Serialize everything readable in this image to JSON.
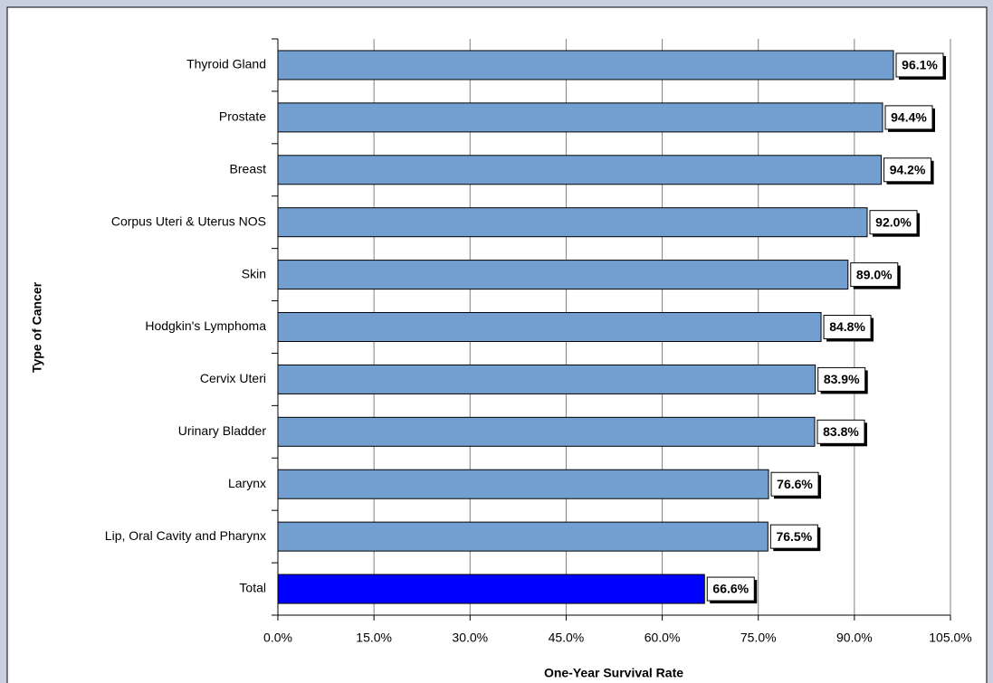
{
  "chart_data": {
    "type": "bar",
    "orientation": "horizontal",
    "x_label": "One-Year Survival Rate",
    "y_label": "Type of Cancer",
    "categories": [
      "Thyroid Gland",
      "Prostate",
      "Breast",
      "Corpus Uteri & Uterus NOS",
      "Skin",
      "Hodgkin's Lymphoma",
      "Cervix Uteri",
      "Urinary Bladder",
      "Larynx",
      "Lip, Oral Cavity and Pharynx",
      "Total"
    ],
    "values": [
      96.1,
      94.4,
      94.2,
      92.0,
      89.0,
      84.8,
      83.9,
      83.8,
      76.6,
      76.5,
      66.6
    ],
    "value_labels": [
      "96.1%",
      "94.4%",
      "94.2%",
      "92.0%",
      "89.0%",
      "84.8%",
      "83.9%",
      "83.8%",
      "76.6%",
      "76.5%",
      "66.6%"
    ],
    "colors": [
      "#739fd0",
      "#739fd0",
      "#739fd0",
      "#739fd0",
      "#739fd0",
      "#739fd0",
      "#739fd0",
      "#739fd0",
      "#739fd0",
      "#739fd0",
      "#0000ff"
    ],
    "xlim": [
      0,
      105
    ],
    "xticks": [
      {
        "value": 0,
        "label": "0.0%"
      },
      {
        "value": 15,
        "label": "15.0%"
      },
      {
        "value": 30,
        "label": "30.0%"
      },
      {
        "value": 45,
        "label": "45.0%"
      },
      {
        "value": 60,
        "label": "60.0%"
      },
      {
        "value": 75,
        "label": "75.0%"
      },
      {
        "value": 90,
        "label": "90.0%"
      },
      {
        "value": 105,
        "label": "105.0%"
      }
    ],
    "grid": true
  }
}
